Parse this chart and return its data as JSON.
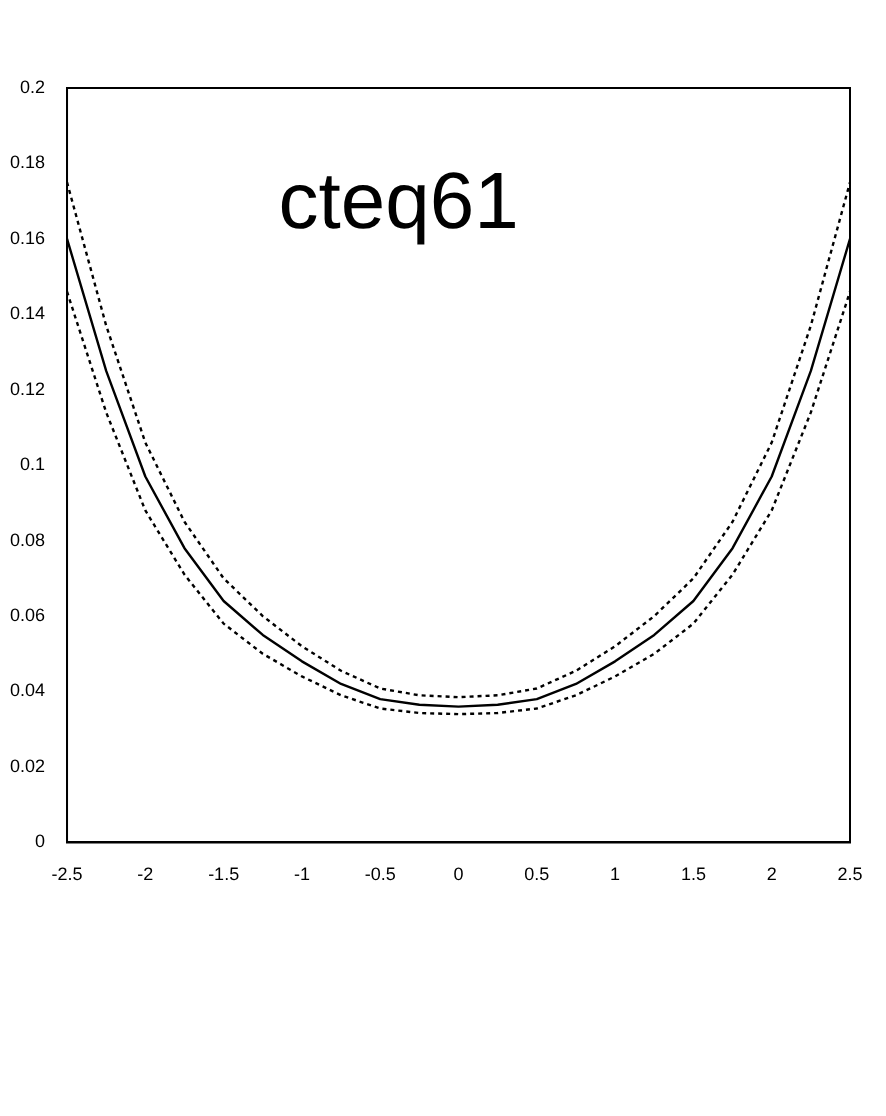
{
  "chart_data": {
    "type": "line",
    "annotations": [
      "cteq61"
    ],
    "x": [
      -2.5,
      -2.25,
      -2,
      -1.75,
      -1.5,
      -1.25,
      -1,
      -0.75,
      -0.5,
      -0.25,
      0,
      0.25,
      0.5,
      0.75,
      1,
      1.25,
      1.5,
      1.75,
      2,
      2.25,
      2.5
    ],
    "series": [
      {
        "color": "#000000",
        "line_style": "solid",
        "values": [
          0.16,
          0.125,
          0.097,
          0.078,
          0.064,
          0.055,
          0.048,
          0.042,
          0.038,
          0.0365,
          0.036,
          0.0365,
          0.038,
          0.042,
          0.048,
          0.055,
          0.064,
          0.078,
          0.097,
          0.125,
          0.16
        ]
      },
      {
        "color": "#000000",
        "line_style": "dotted",
        "values": [
          0.146,
          0.114,
          0.088,
          0.071,
          0.058,
          0.05,
          0.044,
          0.039,
          0.0355,
          0.0343,
          0.034,
          0.0343,
          0.0355,
          0.039,
          0.044,
          0.05,
          0.058,
          0.071,
          0.088,
          0.114,
          0.146
        ]
      },
      {
        "color": "#000000",
        "line_style": "dotted",
        "values": [
          0.175,
          0.137,
          0.106,
          0.085,
          0.07,
          0.06,
          0.052,
          0.0455,
          0.0408,
          0.039,
          0.0385,
          0.039,
          0.0408,
          0.0455,
          0.052,
          0.06,
          0.07,
          0.085,
          0.106,
          0.137,
          0.175
        ]
      }
    ],
    "xlim": [
      -2.5,
      2.5
    ],
    "xticks": [
      -2.5,
      -2,
      -1.5,
      -1,
      -0.5,
      0,
      0.5,
      1,
      1.5,
      2,
      2.5
    ],
    "ylim": [
      0,
      0.2
    ],
    "yticks": [
      0,
      0.02,
      0.04,
      0.06,
      0.08,
      0.1,
      0.12,
      0.14,
      0.16,
      0.18,
      0.2
    ],
    "grid": false,
    "legend": false,
    "marker": "none"
  }
}
